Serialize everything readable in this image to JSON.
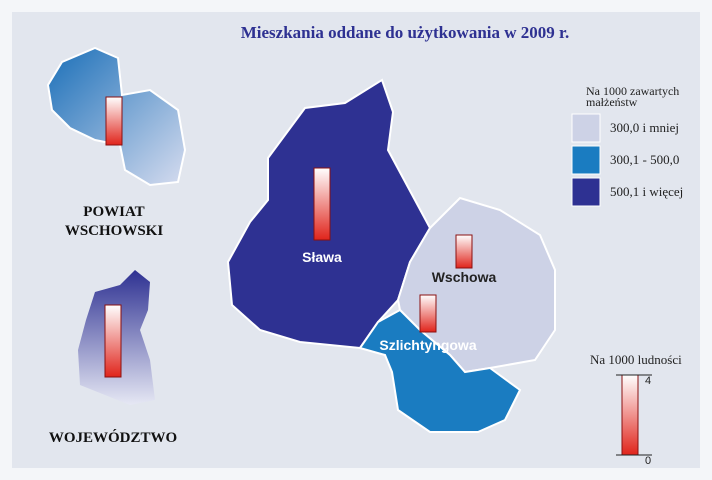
{
  "title": "Mieszkania oddane do użytkowania w 2009 r.",
  "class_legend": {
    "title": [
      "Na 1000 zawartych",
      "małżeństw"
    ],
    "classes": [
      {
        "label": "300,0 i mniej",
        "color": "#cdd2e6"
      },
      {
        "label": "300,1 - 500,0",
        "color": "#1a7cc1"
      },
      {
        "label": "500,1 i więcej",
        "color": "#2e3192"
      }
    ]
  },
  "regions": [
    {
      "name": "Sława",
      "class": 2,
      "value": 3.6
    },
    {
      "name": "Wschowa",
      "class": 0,
      "value": 1.65
    },
    {
      "name": "Szlichtyngowa",
      "class": 1,
      "value": 1.85
    }
  ],
  "overview": [
    {
      "label": [
        "POWIAT",
        "WSCHOWSKI"
      ],
      "value": 2.4
    },
    {
      "label": [
        "WOJEWÓDZTWO"
      ],
      "value": 3.6
    }
  ],
  "bar_scale": {
    "title": "Na 1000 ludności",
    "ticks": [
      0,
      4
    ]
  }
}
